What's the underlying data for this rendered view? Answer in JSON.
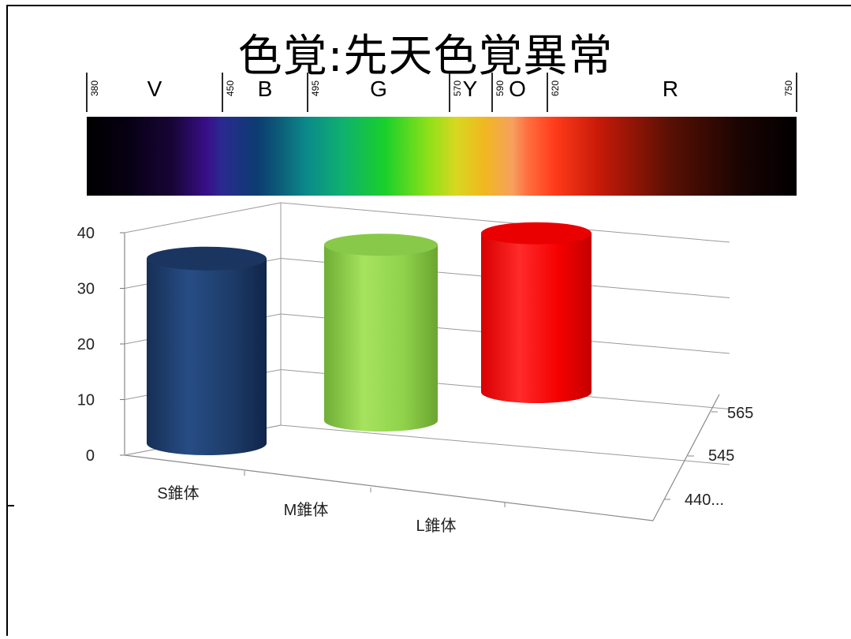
{
  "slide": {
    "title": "色覚:先天色覚異常"
  },
  "spectrum": {
    "bands": [
      {
        "letter": "V",
        "from": "380",
        "to": "450"
      },
      {
        "letter": "B",
        "from": "450",
        "to": "495"
      },
      {
        "letter": "G",
        "from": "495",
        "to": "570"
      },
      {
        "letter": "Y",
        "from": "570",
        "to": "590"
      },
      {
        "letter": "O",
        "from": "590",
        "to": "620"
      },
      {
        "letter": "R",
        "from": "620",
        "to": "750"
      }
    ],
    "boundaries": [
      "380",
      "450",
      "495",
      "570",
      "590",
      "620",
      "750"
    ],
    "nm_range": [
      380,
      750
    ]
  },
  "chart_data": {
    "type": "bar",
    "style": "3d-cylinder",
    "categories": [
      "S錐体",
      "M錐体",
      "L錐体"
    ],
    "depth_labels": [
      "440...",
      "545",
      "565"
    ],
    "series": [
      {
        "name": "440...",
        "values": [
          33,
          null,
          null
        ],
        "color": "#1f3f6e"
      },
      {
        "name": "545",
        "values": [
          null,
          33,
          null
        ],
        "color": "#8fd24a"
      },
      {
        "name": "565",
        "values": [
          null,
          null,
          33
        ],
        "color": "#ff0000"
      }
    ],
    "ylim": [
      0,
      40
    ],
    "yticks": [
      "0",
      "10",
      "20",
      "30",
      "40"
    ],
    "grid": true,
    "legend": "none"
  }
}
